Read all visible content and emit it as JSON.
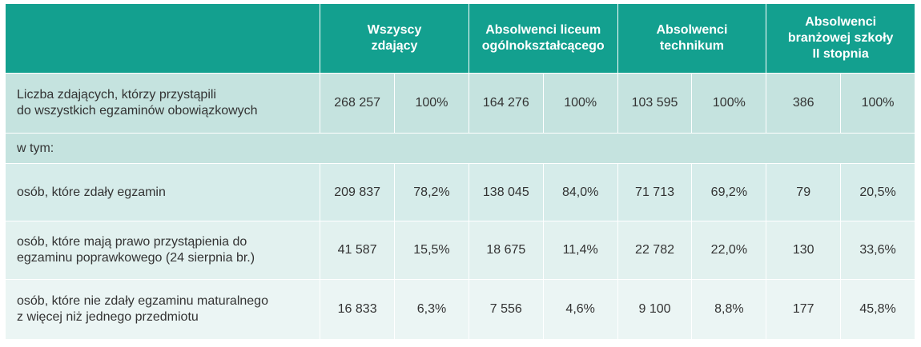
{
  "table": {
    "headers": [
      [
        "Wszyscy",
        "zdający"
      ],
      [
        "Absolwenci liceum",
        "ogólnokształcącego"
      ],
      [
        "Absolwenci",
        "technikum"
      ],
      [
        "Absolwenci",
        "branżowej szkoły",
        "II stopnia"
      ]
    ],
    "rows": [
      {
        "label": [
          "Liczba zdających, którzy przystąpili",
          "do wszystkich egzaminów obowiązkowych"
        ],
        "cells": [
          "268 257",
          "100%",
          "164 276",
          "100%",
          "103 595",
          "100%",
          "386",
          "100%"
        ]
      },
      {
        "label": [
          "w tym:"
        ],
        "cells": []
      },
      {
        "label": [
          "osób, które zdały egzamin"
        ],
        "cells": [
          "209 837",
          "78,2%",
          "138 045",
          "84,0%",
          "71 713",
          "69,2%",
          "79",
          "20,5%"
        ]
      },
      {
        "label": [
          "osób, które mają prawo przystąpienia do",
          "egzaminu poprawkowego (24 sierpnia br.)"
        ],
        "cells": [
          "41 587",
          "15,5%",
          "18 675",
          "11,4%",
          "22 782",
          "22,0%",
          "130",
          "33,6%"
        ]
      },
      {
        "label": [
          "osób, które nie zdały egzaminu maturalnego",
          "z więcej niż jednego przedmiotu"
        ],
        "cells": [
          "16 833",
          "6,3%",
          "7 556",
          "4,6%",
          "9 100",
          "8,8%",
          "177",
          "45,8%"
        ]
      }
    ]
  }
}
